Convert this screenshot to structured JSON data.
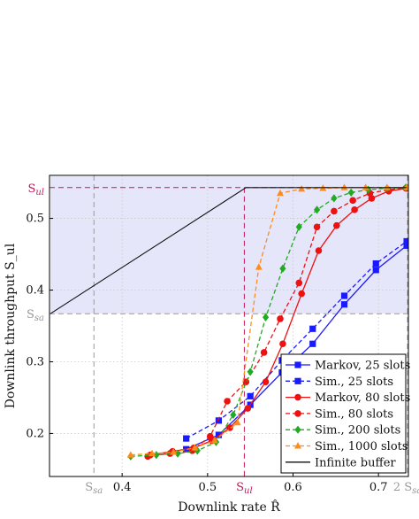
{
  "chart_data": {
    "type": "line",
    "xlabel": "Downlink rate R̂",
    "ylabel": "Downlink throughput S_ul",
    "xlim": [
      0.315,
      0.735
    ],
    "ylim": [
      0.14,
      0.56
    ],
    "grid": true,
    "legend_position": "bottom-right",
    "x_ticks": [
      {
        "value": 0.4,
        "label": "0.4"
      },
      {
        "value": 0.5,
        "label": "0.5"
      },
      {
        "value": 0.6,
        "label": "0.6"
      },
      {
        "value": 0.7,
        "label": "0.7"
      }
    ],
    "y_ticks": [
      {
        "value": 0.2,
        "label": "0.2"
      },
      {
        "value": 0.3,
        "label": "0.3"
      },
      {
        "value": 0.4,
        "label": "0.4"
      },
      {
        "value": 0.5,
        "label": "0.5"
      }
    ],
    "reference_lines": {
      "Ssa": {
        "value": 0.367,
        "label": "S",
        "sub": "sa",
        "color": "#999999"
      },
      "Sul": {
        "value": 0.543,
        "label": "S",
        "sub": "ul",
        "color": "#c2185b"
      },
      "two_Ssa_label": "2",
      "shade_color": "#e6e6fa"
    },
    "series": [
      {
        "name": "Markov, 25 slots",
        "color": "#1a1aff",
        "dash": "solid",
        "marker": "square",
        "x": [
          0.475,
          0.513,
          0.55,
          0.587,
          0.623,
          0.66,
          0.697,
          0.733
        ],
        "y": [
          0.178,
          0.198,
          0.24,
          0.285,
          0.325,
          0.38,
          0.428,
          0.462
        ]
      },
      {
        "name": "Sim., 25 slots",
        "color": "#1a1aff",
        "dash": "dashed",
        "marker": "square",
        "x": [
          0.475,
          0.513,
          0.55,
          0.587,
          0.623,
          0.66,
          0.697,
          0.733
        ],
        "y": [
          0.193,
          0.218,
          0.252,
          0.302,
          0.346,
          0.392,
          0.437,
          0.468
        ]
      },
      {
        "name": "Markov, 80 slots",
        "color": "#ee1111",
        "dash": "solid",
        "marker": "circle",
        "x": [
          0.433,
          0.459,
          0.484,
          0.505,
          0.526,
          0.547,
          0.568,
          0.588,
          0.61,
          0.63,
          0.651,
          0.672,
          0.692,
          0.712,
          0.733
        ],
        "y": [
          0.17,
          0.175,
          0.18,
          0.19,
          0.208,
          0.235,
          0.272,
          0.325,
          0.395,
          0.455,
          0.49,
          0.512,
          0.528,
          0.538,
          0.542
        ]
      },
      {
        "name": "Sim., 80 slots",
        "color": "#ee1111",
        "dash": "dashed",
        "marker": "circle",
        "x": [
          0.43,
          0.456,
          0.482,
          0.503,
          0.523,
          0.545,
          0.566,
          0.585,
          0.607,
          0.628,
          0.648,
          0.67,
          0.69,
          0.711,
          0.732
        ],
        "y": [
          0.168,
          0.172,
          0.176,
          0.196,
          0.245,
          0.272,
          0.313,
          0.36,
          0.41,
          0.488,
          0.51,
          0.525,
          0.535,
          0.54,
          0.542
        ]
      },
      {
        "name": "Sim., 200 slots",
        "color": "#22aa22",
        "dash": "dashed",
        "marker": "diamond",
        "x": [
          0.41,
          0.44,
          0.465,
          0.488,
          0.51,
          0.53,
          0.55,
          0.568,
          0.588,
          0.607,
          0.628,
          0.648,
          0.668,
          0.688,
          0.71,
          0.732
        ],
        "y": [
          0.168,
          0.17,
          0.172,
          0.176,
          0.188,
          0.226,
          0.286,
          0.362,
          0.43,
          0.488,
          0.512,
          0.528,
          0.536,
          0.54,
          0.542,
          0.543
        ]
      },
      {
        "name": "Sim., 1000 slots",
        "color": "#ff8c1a",
        "dash": "dashed",
        "marker": "triangle",
        "x": [
          0.41,
          0.435,
          0.46,
          0.485,
          0.508,
          0.535,
          0.56,
          0.585,
          0.61,
          0.635,
          0.66,
          0.685,
          0.71,
          0.733
        ],
        "y": [
          0.17,
          0.172,
          0.174,
          0.18,
          0.19,
          0.215,
          0.432,
          0.535,
          0.541,
          0.542,
          0.543,
          0.543,
          0.543,
          0.543
        ]
      },
      {
        "name": "Infinite buffer",
        "color": "#111111",
        "dash": "solid",
        "marker": "none",
        "x": [
          0.316,
          0.545,
          0.733
        ],
        "y": [
          0.367,
          0.543,
          0.543
        ]
      }
    ]
  }
}
